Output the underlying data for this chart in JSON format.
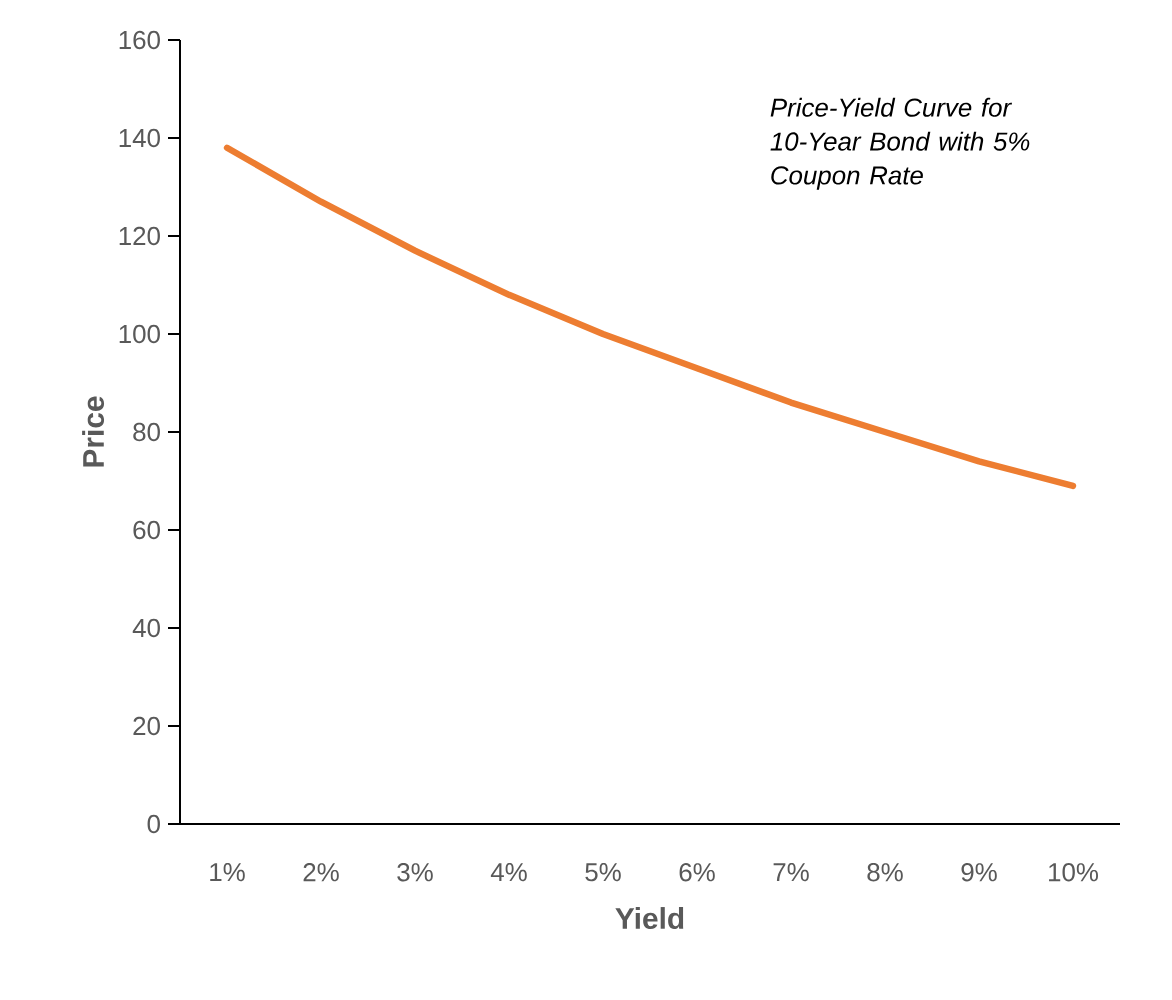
{
  "chart_data": {
    "type": "line",
    "title": "Price-Yield Curve for 10-Year Bond with 5% Coupon Rate",
    "xlabel": "Yield",
    "ylabel": "Price",
    "categories": [
      "1%",
      "2%",
      "3%",
      "4%",
      "5%",
      "6%",
      "7%",
      "8%",
      "9%",
      "10%"
    ],
    "values": [
      138,
      127,
      117,
      108,
      100,
      93,
      86,
      80,
      74,
      69
    ],
    "color": "#ed7d31",
    "ylim": [
      0,
      160
    ],
    "yticks": [
      0,
      20,
      40,
      60,
      80,
      100,
      120,
      140,
      160
    ]
  }
}
